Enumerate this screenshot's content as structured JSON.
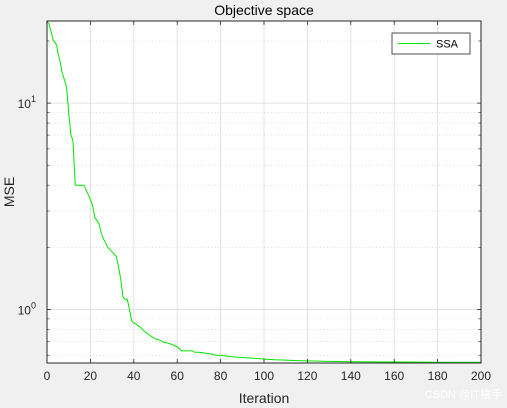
{
  "chart_data": {
    "type": "line",
    "title": "Objective space",
    "xlabel": "Iteration",
    "ylabel": "MSE",
    "xscale": "linear",
    "yscale": "log",
    "xlim": [
      0,
      200
    ],
    "ylim": [
      0.55,
      25
    ],
    "xticks": [
      0,
      20,
      40,
      60,
      80,
      100,
      120,
      140,
      160,
      180,
      200
    ],
    "yticks": [
      1,
      10
    ],
    "ytick_labels": [
      {
        "base": "10",
        "exp": "0"
      },
      {
        "base": "10",
        "exp": "1"
      }
    ],
    "grid": true,
    "minor_grid_y": true,
    "legend": "top-right",
    "series": [
      {
        "name": "SSA",
        "color": "#00e600",
        "x": [
          0,
          1,
          2,
          3,
          4,
          4.5,
          5,
          6,
          7,
          7.5,
          8,
          9,
          10,
          11,
          11.5,
          12,
          13,
          13.5,
          14,
          15,
          16,
          17,
          18,
          19,
          20,
          21,
          22,
          23,
          24,
          25,
          26,
          27,
          28,
          29,
          30,
          31,
          32,
          33,
          34,
          35,
          36,
          37,
          38,
          39,
          40,
          41,
          43,
          44,
          45,
          46,
          48,
          50,
          52,
          54,
          55,
          57,
          60,
          62,
          65,
          67,
          68,
          70,
          75,
          78,
          80,
          85,
          90,
          95,
          100,
          105,
          110,
          115,
          120,
          130,
          140,
          150,
          160,
          180,
          200
        ],
        "y": [
          25,
          24,
          22,
          20,
          19.5,
          19,
          17.5,
          16,
          14,
          13.5,
          13,
          12,
          9,
          7,
          6.8,
          6.5,
          4,
          4,
          4,
          4,
          4,
          4,
          3.8,
          3.6,
          3.4,
          3.2,
          2.8,
          2.7,
          2.6,
          2.35,
          2.2,
          2.1,
          2.0,
          1.95,
          1.9,
          1.85,
          1.8,
          1.6,
          1.4,
          1.15,
          1.12,
          1.12,
          1.0,
          0.88,
          0.86,
          0.85,
          0.82,
          0.8,
          0.78,
          0.77,
          0.74,
          0.72,
          0.71,
          0.69,
          0.69,
          0.68,
          0.66,
          0.63,
          0.63,
          0.63,
          0.62,
          0.62,
          0.61,
          0.6,
          0.6,
          0.59,
          0.585,
          0.58,
          0.575,
          0.57,
          0.568,
          0.565,
          0.563,
          0.56,
          0.558,
          0.557,
          0.556,
          0.555,
          0.555
        ]
      }
    ]
  },
  "watermark": "CSDN @IT猿手"
}
